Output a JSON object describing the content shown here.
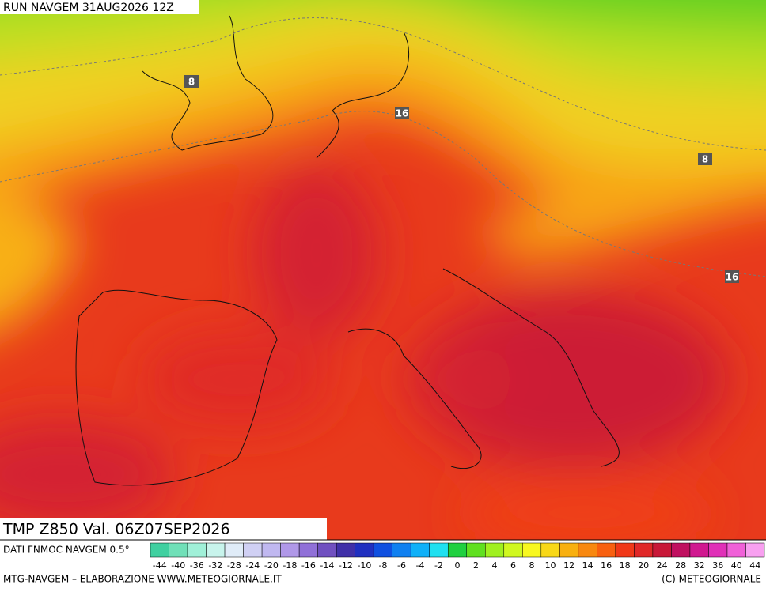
{
  "header": {
    "title": "RUN NAVGEM 31AUG2026 12Z"
  },
  "map": {
    "field_label": "TMP Z850 Val. 06Z07SEP2026",
    "contour_labels": [
      "8",
      "16",
      "16",
      "8"
    ]
  },
  "legend": {
    "source": "DATI FNMOC NAVGEM 0.5°",
    "labels": [
      -44,
      -40,
      -36,
      -32,
      -28,
      -24,
      -20,
      -18,
      -16,
      -14,
      -12,
      -10,
      -8,
      -6,
      -4,
      -2,
      0,
      2,
      4,
      6,
      8,
      10,
      12,
      14,
      16,
      18,
      20,
      24,
      28,
      32,
      36,
      40,
      44
    ],
    "colors": [
      "#40d0a0",
      "#70e0b8",
      "#a0f0d8",
      "#c8f4ec",
      "#e0ecf8",
      "#d0d0f4",
      "#c0b8f0",
      "#b098e8",
      "#9070d8",
      "#7050c0",
      "#4030a8",
      "#2030c0",
      "#1050e0",
      "#1080f0",
      "#10b0f8",
      "#20e0f0",
      "#20d040",
      "#60e020",
      "#a0f020",
      "#d0f820",
      "#f8f820",
      "#f8d818",
      "#f8b010",
      "#f88810",
      "#f86010",
      "#f03818",
      "#e02828",
      "#c81838",
      "#c01060",
      "#d01890",
      "#e030b8",
      "#f060d8",
      "#f8a0f0"
    ]
  },
  "footer": {
    "left": "MTG-NAVGEM – ELABORAZIONE WWW.METEOGIORNALE.IT",
    "right": "(C) METEOGIORNALE"
  }
}
